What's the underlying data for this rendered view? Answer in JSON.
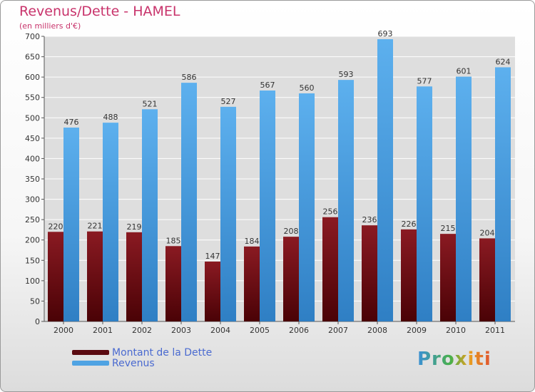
{
  "chart_data": {
    "type": "bar",
    "title": "Revenus/Dette - HAMEL",
    "subtitle": "(en milliers d'€)",
    "categories": [
      "2000",
      "2001",
      "2002",
      "2003",
      "2004",
      "2005",
      "2006",
      "2007",
      "2008",
      "2009",
      "2010",
      "2011"
    ],
    "series": [
      {
        "name": "Montant de la Dette",
        "color": "#6b0d14",
        "values": [
          220,
          221,
          219,
          185,
          147,
          184,
          208,
          256,
          236,
          226,
          215,
          204
        ]
      },
      {
        "name": "Revenus",
        "color": "#4fa3e3",
        "values": [
          476,
          488,
          521,
          586,
          527,
          567,
          560,
          593,
          693,
          577,
          601,
          624
        ]
      }
    ],
    "ylim": [
      0,
      700
    ],
    "yticks": [
      0,
      50,
      100,
      150,
      200,
      250,
      300,
      350,
      400,
      450,
      500,
      550,
      600,
      650,
      700
    ],
    "grid": true,
    "legend_position": "bottom-left"
  },
  "brand": {
    "logo_text": "Proxiti"
  }
}
